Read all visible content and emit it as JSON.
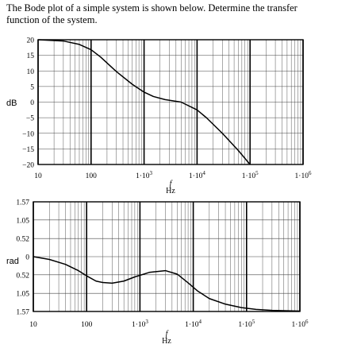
{
  "problem": {
    "line1": "The Bode plot of a simple system is shown below. Determine the transfer",
    "line2": "function of the system."
  },
  "chart_data": [
    {
      "type": "line",
      "name": "magnitude",
      "ylabel": "dB",
      "xlabel": "f",
      "xunit": "Hz",
      "xscale": "log",
      "xlim": [
        10,
        1000000
      ],
      "ylim": [
        -20,
        20
      ],
      "grid": true,
      "x_tick_labels": [
        "10",
        "100",
        "1·10",
        "1·10",
        "1·10",
        "1·10"
      ],
      "x_tick_exponents": [
        "",
        "",
        "3",
        "4",
        "5",
        "6"
      ],
      "y_tick_labels": [
        "20",
        "15",
        "10",
        "5",
        "0",
        "−5",
        "−10",
        "−15",
        "−20"
      ],
      "y_ticks": [
        20,
        15,
        10,
        5,
        0,
        -5,
        -10,
        -15,
        -20
      ],
      "series": [
        {
          "x": [
            10,
            30,
            60,
            100,
            150,
            300,
            600,
            1000,
            1500,
            2500,
            5000,
            10000,
            15000,
            30000,
            60000,
            100000
          ],
          "values": [
            20,
            19.6,
            18.5,
            16.8,
            14.5,
            9.8,
            5.7,
            3.2,
            1.8,
            0.8,
            0,
            -2.5,
            -5,
            -10,
            -15.5,
            -20
          ]
        }
      ],
      "series_color": "#000000"
    },
    {
      "type": "line",
      "name": "phase",
      "ylabel": "rad",
      "xlabel": "f",
      "xunit": "Hz",
      "xscale": "log",
      "xlim": [
        10,
        1000000
      ],
      "ylim": [
        -1.57,
        1.57
      ],
      "grid": true,
      "x_tick_labels": [
        "10",
        "100",
        "1·10",
        "1·10",
        "1·10",
        "1·10"
      ],
      "x_tick_exponents": [
        "",
        "",
        "3",
        "4",
        "5",
        "6"
      ],
      "y_tick_labels": [
        "1.57",
        "1.05",
        "0.52",
        "0",
        "0.52",
        "1.05",
        "1.57"
      ],
      "y_ticks": [
        1.57,
        1.05,
        0.52,
        0,
        -0.52,
        -1.05,
        -1.57
      ],
      "series": [
        {
          "x": [
            10,
            20,
            40,
            70,
            100,
            150,
            200,
            300,
            500,
            800,
            1500,
            3000,
            5000,
            8000,
            12000,
            20000,
            40000,
            80000,
            150000,
            300000,
            1000000
          ],
          "values": [
            0,
            -0.08,
            -0.22,
            -0.4,
            -0.55,
            -0.7,
            -0.74,
            -0.76,
            -0.7,
            -0.58,
            -0.45,
            -0.4,
            -0.5,
            -0.75,
            -0.98,
            -1.2,
            -1.36,
            -1.46,
            -1.51,
            -1.54,
            -1.56
          ]
        }
      ],
      "series_color": "#000000"
    }
  ]
}
